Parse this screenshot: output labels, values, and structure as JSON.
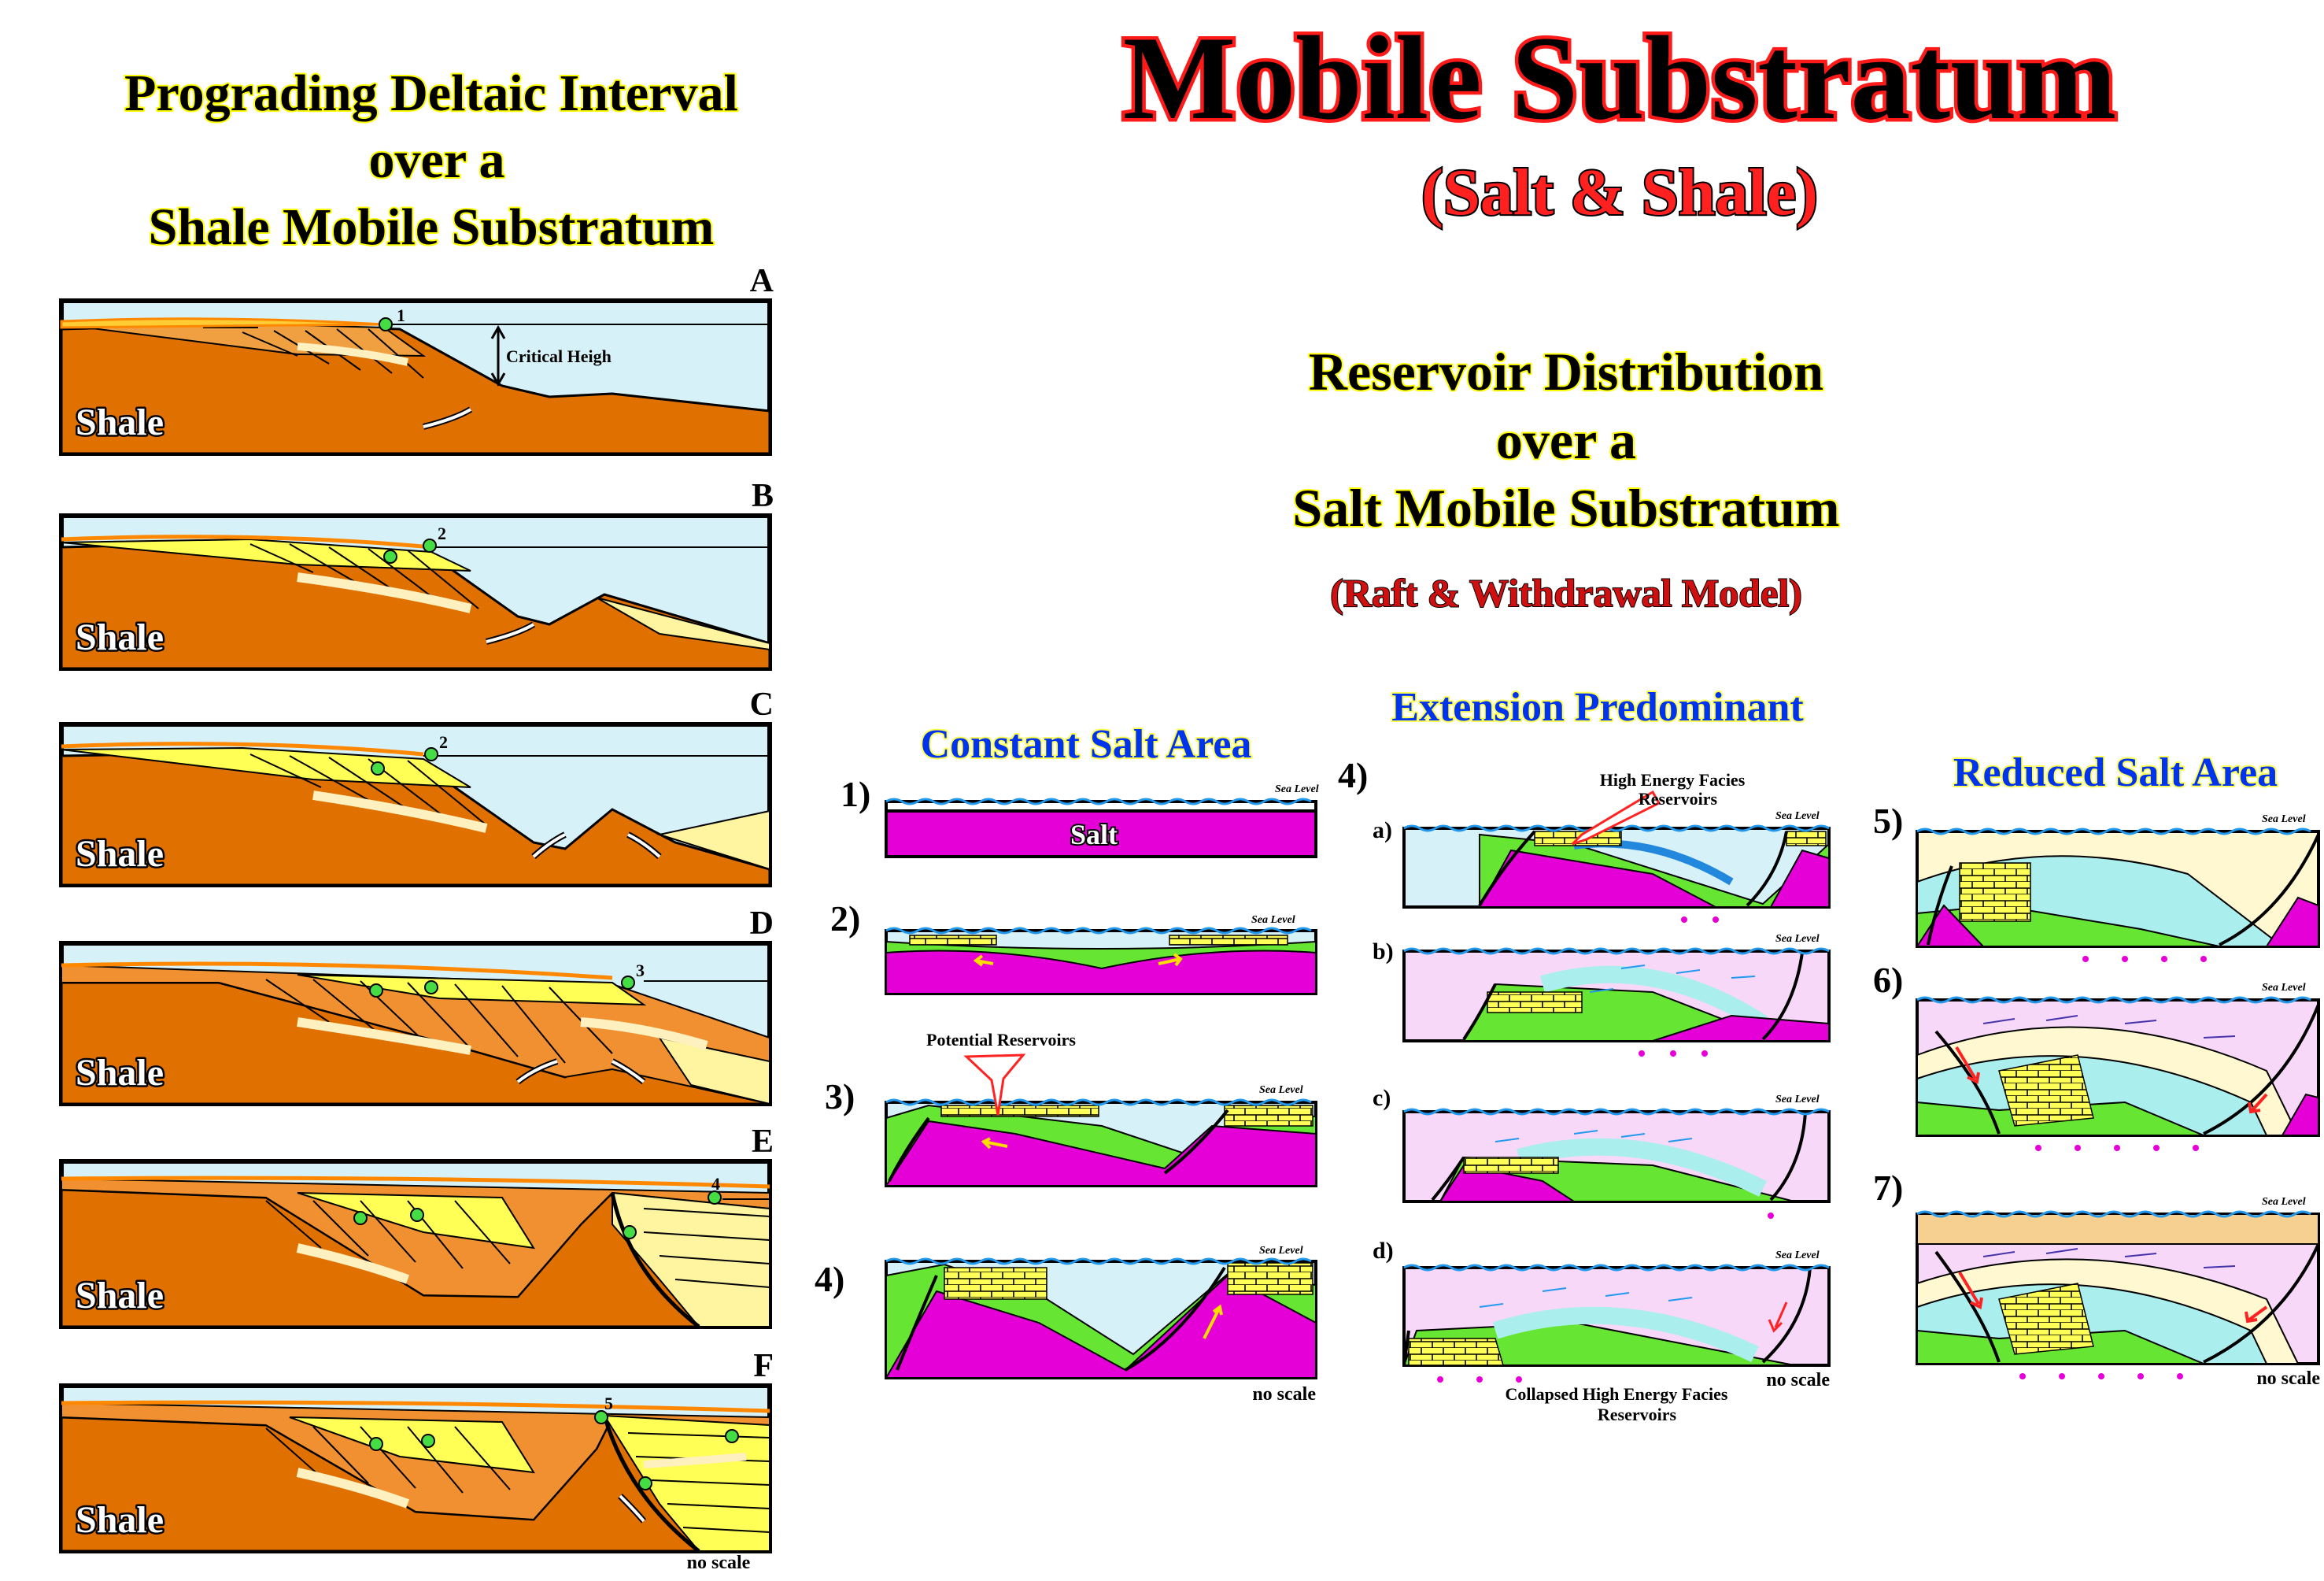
{
  "title": {
    "main": "Mobile Substratum",
    "sub": "(Salt & Shale)"
  },
  "left_section": {
    "title_lines": [
      "Prograding Deltaic Interval",
      "over a",
      "Shale Mobile Substratum"
    ],
    "rock_label": "Shale",
    "critical_height_label": "Critical Heigh",
    "no_scale": "no scale",
    "panels": [
      {
        "letter": "A",
        "points": [
          "1"
        ]
      },
      {
        "letter": "B",
        "points": [
          "2"
        ]
      },
      {
        "letter": "C",
        "points": [
          "2"
        ]
      },
      {
        "letter": "D",
        "points": [
          "3"
        ]
      },
      {
        "letter": "E",
        "points": [
          "4"
        ]
      },
      {
        "letter": "F",
        "points": [
          "5"
        ]
      }
    ]
  },
  "right_section": {
    "title_lines": [
      "Reservoir Distribution",
      "over a",
      "Salt Mobile Substratum"
    ],
    "model_label": "(Raft & Withdrawal Model)",
    "extension_label": "Extension Predominant",
    "sea_level": "Sea Level",
    "no_scale": "no scale",
    "constant_salt": {
      "heading": "Constant Salt Area",
      "steps": [
        "1)",
        "2)",
        "3)",
        "4)"
      ],
      "salt_label": "Salt",
      "reservoir_callout": "Potential  Reservoirs"
    },
    "extension": {
      "step": "4)",
      "substeps": [
        "a)",
        "b)",
        "c)",
        "d)"
      ],
      "high_energy_callout": [
        "High Energy Facies",
        "Reservoirs"
      ],
      "collapsed_callout": [
        "Collapsed High Energy Facies",
        "Reservoirs"
      ]
    },
    "reduced_salt": {
      "heading": "Reduced Salt Area",
      "steps": [
        "5)",
        "6)",
        "7)"
      ]
    }
  },
  "colors": {
    "shale_orange": "#e07000",
    "salt_magenta": "#e600d8",
    "water_blue": "#d6f1f7",
    "sand_yellow": "#ffff66",
    "green_layer": "#66e633",
    "title_red": "#ff1a1a",
    "heading_blue": "#0033ee"
  }
}
